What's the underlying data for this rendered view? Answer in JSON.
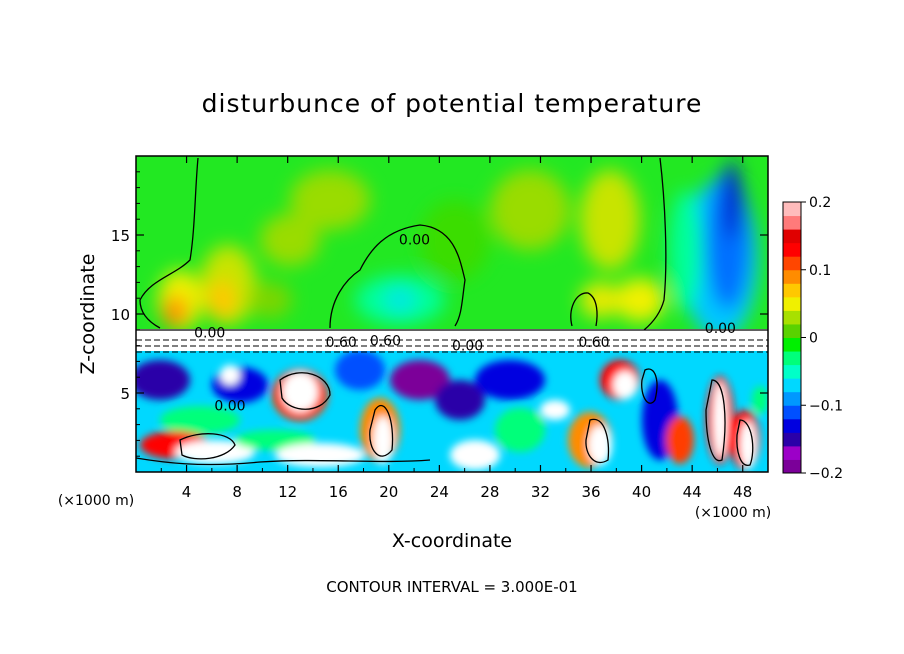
{
  "chart_data": {
    "type": "heatmap",
    "title": "disturbunce of potential temperature",
    "xlabel": "X-coordinate",
    "ylabel": "Z-coordinate",
    "x_unit_left": "(×1000 m)",
    "x_unit_right": "(×1000 m)",
    "footer": "CONTOUR INTERVAL = 3.000E-01",
    "xlim": [
      0,
      50
    ],
    "ylim": [
      0,
      20
    ],
    "x_ticks": [
      4,
      8,
      12,
      16,
      20,
      24,
      28,
      32,
      36,
      40,
      44,
      48
    ],
    "y_ticks": [
      5,
      10,
      15
    ],
    "colorbar": {
      "range": [
        -0.2,
        0.2
      ],
      "ticks": [
        "0.2",
        "0.1",
        "0",
        "−0.1",
        "−0.2"
      ],
      "tick_values": [
        0.2,
        0.1,
        0,
        -0.1,
        -0.2
      ],
      "colors": [
        "#7b0099",
        "#9c00c8",
        "#2a00a8",
        "#0000e0",
        "#0050ff",
        "#0098ff",
        "#00d8ff",
        "#00ffc8",
        "#00ff7a",
        "#00f000",
        "#5ad200",
        "#a8e000",
        "#f0f000",
        "#ffc800",
        "#ff8c00",
        "#ff4600",
        "#ff0000",
        "#e00000",
        "#ff7a7a",
        "#ffbcbc"
      ]
    },
    "contour_labels": [
      {
        "text": "0.00",
        "x": 20.8,
        "z": 14.4
      },
      {
        "text": "0.60",
        "x": 15.0,
        "z": 7.9
      },
      {
        "text": "0.60",
        "x": 18.5,
        "z": 8.0
      },
      {
        "text": "0.00",
        "x": 25.0,
        "z": 7.7
      },
      {
        "text": "0.60",
        "x": 35.0,
        "z": 7.9
      },
      {
        "text": "0.00",
        "x": 45.0,
        "z": 8.8
      },
      {
        "text": "0.00",
        "x": 6.2,
        "z": 3.9
      },
      {
        "text": "0.00",
        "x": 4.6,
        "z": 8.5
      }
    ]
  }
}
